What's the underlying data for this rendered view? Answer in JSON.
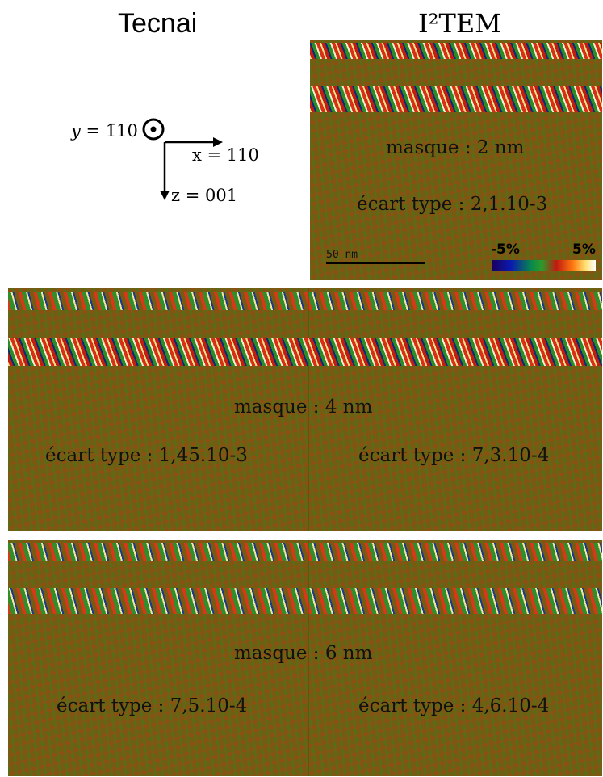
{
  "headers": {
    "left": "Tecnai",
    "right": "I²TEM"
  },
  "axes": {
    "y_label": "y = ",
    "y_value": "1̄10",
    "x_label": "x = 110",
    "z_label": "z = 001"
  },
  "panel_top": {
    "mask": "masque : 2 nm",
    "std": "écart type : 2,1.10-3",
    "scale_label": "50 nm",
    "colorbar_min": "-5%",
    "colorbar_max": "5%"
  },
  "panel_mid": {
    "mask": "masque : 4 nm",
    "std_left": "écart type : 1,45.10-3",
    "std_right": "écart type : 7,3.10-4"
  },
  "panel_bottom": {
    "mask": "masque : 6 nm",
    "std_left": "écart type : 7,5.10-4",
    "std_right": "écart type : 4,6.10-4"
  },
  "colors": {
    "background_strain": "#7a5a10",
    "green": "#2e8a24",
    "red": "#c21e10",
    "blue": "#0a2a7a",
    "yellow": "#f2e08a"
  }
}
